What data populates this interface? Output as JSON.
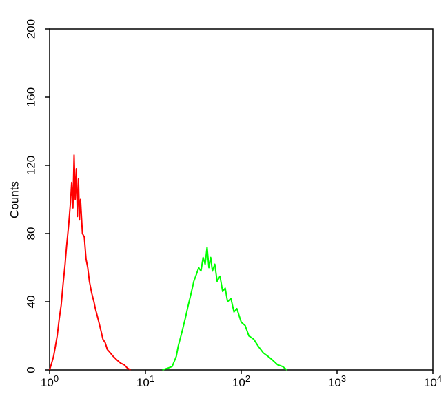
{
  "chart_data": {
    "type": "line",
    "y_label": "Counts",
    "xscale": "log",
    "xlim": [
      1,
      10000
    ],
    "xticks": [
      {
        "value": 1,
        "label": "10",
        "exponent": "0"
      },
      {
        "value": 10,
        "label": "10",
        "exponent": "1"
      },
      {
        "value": 100,
        "label": "10",
        "exponent": "2"
      },
      {
        "value": 1000,
        "label": "10",
        "exponent": "3"
      },
      {
        "value": 10000,
        "label": "10",
        "exponent": "4"
      }
    ],
    "ylim": [
      0,
      200
    ],
    "yticks": [
      0,
      40,
      80,
      120,
      160,
      200
    ],
    "series": [
      {
        "color": "#ff0000",
        "x": [
          1.0,
          1.05,
          1.1,
          1.15,
          1.2,
          1.26,
          1.32,
          1.38,
          1.45,
          1.5,
          1.58,
          1.65,
          1.7,
          1.75,
          1.8,
          1.85,
          1.9,
          1.95,
          2.0,
          2.05,
          2.1,
          2.2,
          2.3,
          2.4,
          2.5,
          2.6,
          2.75,
          2.9,
          3.0,
          3.2,
          3.4,
          3.6,
          3.8,
          4.0,
          4.3,
          4.6,
          5.0,
          5.5,
          6.0,
          6.5,
          7.0
        ],
        "values": [
          0,
          4,
          8,
          14,
          20,
          30,
          38,
          50,
          62,
          72,
          85,
          98,
          110,
          95,
          126,
          100,
          118,
          90,
          112,
          88,
          100,
          80,
          78,
          65,
          60,
          52,
          45,
          40,
          36,
          30,
          24,
          18,
          16,
          12,
          10,
          8,
          6,
          4,
          3,
          1,
          0
        ]
      },
      {
        "color": "#00ff00",
        "x": [
          15,
          17,
          19,
          20,
          21,
          22,
          24,
          26,
          28,
          30,
          32,
          34,
          36,
          38,
          40,
          42,
          44,
          46,
          48,
          50,
          53,
          56,
          60,
          64,
          68,
          72,
          78,
          84,
          90,
          100,
          110,
          120,
          135,
          150,
          170,
          190,
          210,
          240,
          270,
          300
        ],
        "values": [
          0,
          1,
          2,
          5,
          8,
          14,
          22,
          30,
          38,
          45,
          52,
          56,
          60,
          58,
          66,
          62,
          72,
          60,
          66,
          58,
          62,
          52,
          55,
          46,
          48,
          40,
          42,
          34,
          36,
          28,
          26,
          20,
          18,
          14,
          10,
          8,
          6,
          3,
          2,
          0
        ]
      }
    ]
  }
}
